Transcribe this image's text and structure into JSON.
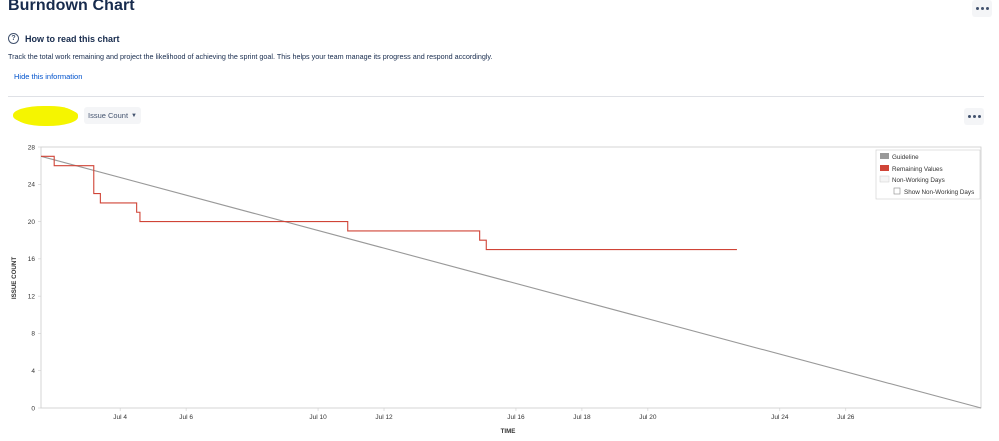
{
  "page": {
    "title": "Burndown Chart"
  },
  "info": {
    "title": "How to read this chart",
    "description": "Track the total work remaining and project the likelihood of achieving the sprint goal. This helps your team manage its progress and respond accordingly.",
    "hide_link": "Hide this information"
  },
  "controls": {
    "statistic_label": "Issue Count"
  },
  "colors": {
    "guideline": "#999999",
    "remaining": "#d04437",
    "nonworking": "#f5f5f5",
    "link": "#0052cc",
    "redaction": "#f5f500"
  },
  "icons": {
    "more": "more-icon",
    "help": "question-circle-icon",
    "caret": "caret-down-icon"
  },
  "chart_data": {
    "type": "line",
    "xlabel": "TIME",
    "ylabel": "ISSUE COUNT",
    "yticks": [
      0,
      4,
      8,
      12,
      16,
      20,
      24,
      28
    ],
    "ylim": [
      0,
      28
    ],
    "xlim_days": [
      0,
      28.5
    ],
    "xtick_labels": [
      "Jul 4",
      "Jul 6",
      "Jul 10",
      "Jul 12",
      "Jul 16",
      "Jul 18",
      "Jul 20",
      "Jul 24",
      "Jul 26"
    ],
    "xtick_days": [
      2.4,
      4.4,
      8.4,
      10.4,
      14.4,
      16.4,
      18.4,
      22.4,
      24.4
    ],
    "legend": {
      "position": "top-right",
      "items": [
        "Guideline",
        "Remaining Values",
        "Non-Working Days"
      ],
      "checkbox_label": "Show Non-Working Days",
      "checkbox_checked": false
    },
    "series": [
      {
        "name": "Guideline",
        "points": [
          [
            0,
            27
          ],
          [
            28.5,
            0
          ]
        ]
      },
      {
        "name": "Remaining Values",
        "step": true,
        "points": [
          [
            0,
            27
          ],
          [
            0.4,
            26
          ],
          [
            1.6,
            23
          ],
          [
            1.8,
            22
          ],
          [
            2.9,
            21
          ],
          [
            3.0,
            20
          ],
          [
            9.3,
            19
          ],
          [
            13.3,
            18
          ],
          [
            13.5,
            17
          ],
          [
            21.1,
            17
          ]
        ]
      }
    ]
  }
}
